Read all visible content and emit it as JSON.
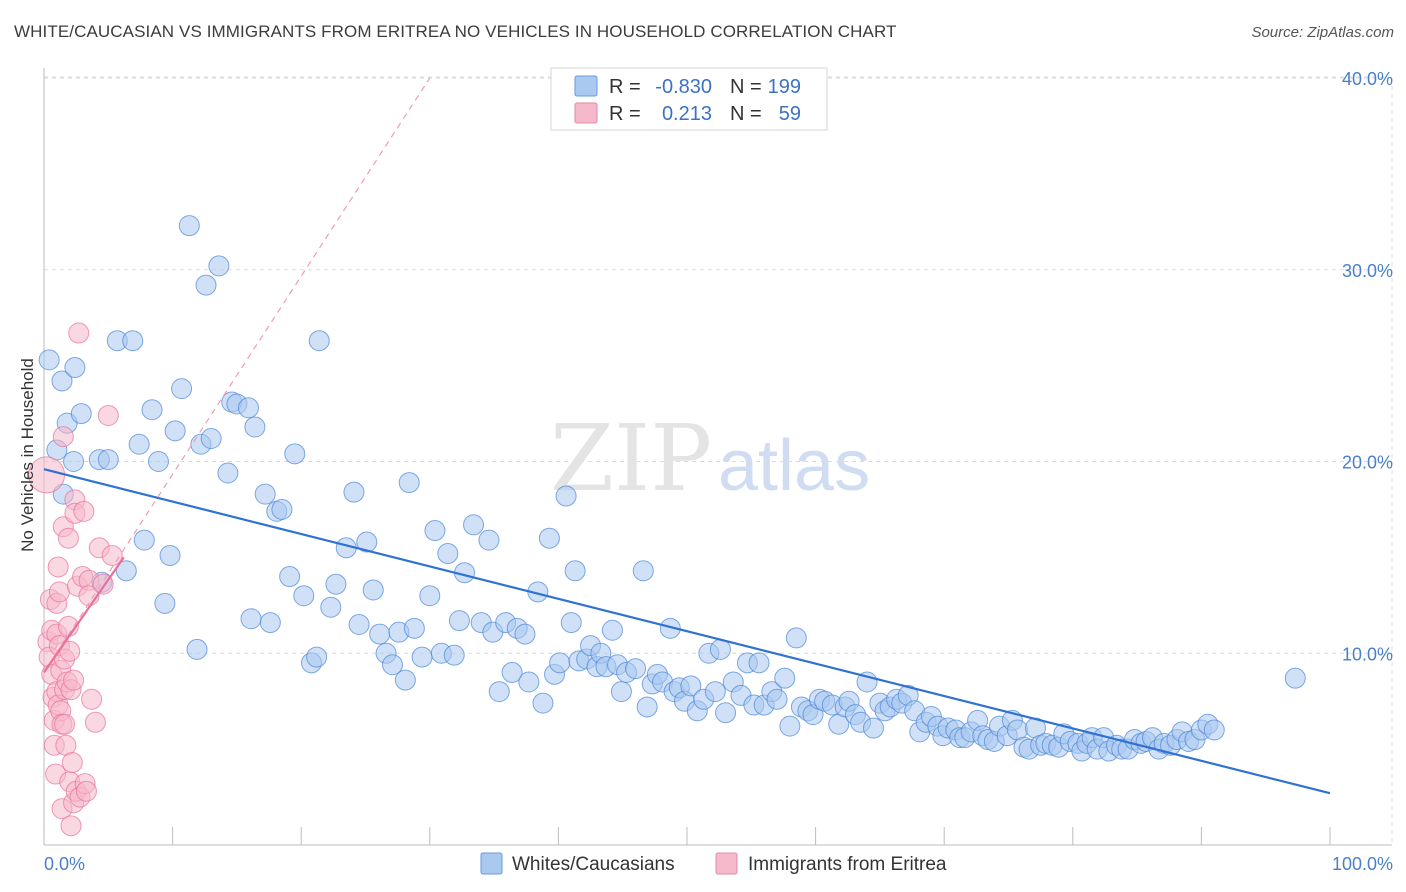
{
  "header": {
    "title": "WHITE/CAUCASIAN VS IMMIGRANTS FROM ERITREA NO VEHICLES IN HOUSEHOLD CORRELATION CHART",
    "source": "Source: ZipAtlas.com"
  },
  "watermark": {
    "zip": "ZIP",
    "atlas": "atlas"
  },
  "stats_legend": {
    "rows": [
      {
        "r_label": "R =",
        "r_value": "-0.830",
        "n_label": "N =",
        "n_value": "199",
        "color": "#a9c9f0"
      },
      {
        "r_label": "R =",
        "r_value": "0.213",
        "n_label": "N =",
        "n_value": "59",
        "color": "#f6b8cb"
      }
    ]
  },
  "bottom_legend": {
    "items": [
      {
        "label": "Whites/Caucasians",
        "color": "#a9c9f0"
      },
      {
        "label": "Immigrants from Eritrea",
        "color": "#f6b8cb"
      }
    ]
  },
  "chart_data": {
    "type": "scatter",
    "title": "WHITE/CAUCASIAN VS IMMIGRANTS FROM ERITREA NO VEHICLES IN HOUSEHOLD CORRELATION CHART",
    "xlabel": "",
    "ylabel": "No Vehicles in Household",
    "xlim": [
      0,
      100
    ],
    "ylim": [
      0,
      40
    ],
    "x_tick_labels": [
      "0.0%",
      "100.0%"
    ],
    "y_ticks": [
      10,
      20,
      30,
      40
    ],
    "y_tick_labels": [
      "10.0%",
      "20.0%",
      "30.0%",
      "40.0%"
    ],
    "grid": true,
    "legend": "top-center",
    "series": [
      {
        "name": "Whites/Caucasians",
        "color": "#4a86d8",
        "fill": "#a9c9f0",
        "trend": {
          "x": [
            0,
            100
          ],
          "y": [
            19.6,
            2.7
          ],
          "style": "solid"
        },
        "points": [
          [
            0.4,
            25.3
          ],
          [
            1.0,
            20.6
          ],
          [
            1.4,
            24.2
          ],
          [
            1.5,
            18.3
          ],
          [
            1.8,
            22.0
          ],
          [
            2.3,
            20.0
          ],
          [
            2.4,
            24.9
          ],
          [
            2.9,
            22.5
          ],
          [
            4.3,
            20.1
          ],
          [
            4.5,
            13.7
          ],
          [
            5.0,
            20.1
          ],
          [
            5.7,
            26.3
          ],
          [
            6.4,
            14.3
          ],
          [
            6.9,
            26.3
          ],
          [
            7.4,
            20.9
          ],
          [
            7.8,
            15.9
          ],
          [
            8.4,
            22.7
          ],
          [
            8.9,
            20.0
          ],
          [
            9.4,
            12.6
          ],
          [
            9.8,
            15.1
          ],
          [
            10.2,
            21.6
          ],
          [
            10.7,
            23.8
          ],
          [
            11.3,
            32.3
          ],
          [
            11.9,
            10.2
          ],
          [
            12.2,
            20.9
          ],
          [
            12.6,
            29.2
          ],
          [
            13.0,
            21.2
          ],
          [
            13.6,
            30.2
          ],
          [
            14.3,
            19.4
          ],
          [
            14.6,
            23.1
          ],
          [
            15.0,
            23.0
          ],
          [
            15.9,
            22.8
          ],
          [
            16.1,
            11.8
          ],
          [
            16.4,
            21.8
          ],
          [
            17.2,
            18.3
          ],
          [
            17.6,
            11.6
          ],
          [
            18.1,
            17.4
          ],
          [
            18.5,
            17.5
          ],
          [
            19.1,
            14.0
          ],
          [
            19.5,
            20.4
          ],
          [
            20.2,
            13.0
          ],
          [
            20.8,
            9.5
          ],
          [
            21.2,
            9.8
          ],
          [
            21.4,
            26.3
          ],
          [
            22.3,
            12.4
          ],
          [
            22.7,
            13.6
          ],
          [
            23.5,
            15.5
          ],
          [
            24.1,
            18.4
          ],
          [
            24.5,
            11.5
          ],
          [
            25.1,
            15.8
          ],
          [
            25.6,
            13.3
          ],
          [
            26.1,
            11.0
          ],
          [
            26.6,
            10.0
          ],
          [
            27.1,
            9.4
          ],
          [
            27.6,
            11.1
          ],
          [
            28.1,
            8.6
          ],
          [
            28.4,
            18.9
          ],
          [
            28.8,
            11.3
          ],
          [
            29.4,
            9.8
          ],
          [
            30.0,
            13.0
          ],
          [
            30.4,
            16.4
          ],
          [
            30.9,
            10.0
          ],
          [
            31.4,
            15.2
          ],
          [
            31.9,
            9.9
          ],
          [
            32.3,
            11.7
          ],
          [
            32.7,
            14.2
          ],
          [
            33.4,
            16.7
          ],
          [
            34.0,
            11.6
          ],
          [
            34.6,
            15.9
          ],
          [
            34.9,
            11.1
          ],
          [
            35.4,
            8.0
          ],
          [
            35.9,
            11.6
          ],
          [
            36.4,
            9.0
          ],
          [
            36.8,
            11.3
          ],
          [
            37.4,
            11.0
          ],
          [
            37.7,
            8.5
          ],
          [
            38.4,
            13.2
          ],
          [
            38.8,
            7.4
          ],
          [
            39.3,
            16.0
          ],
          [
            39.7,
            8.9
          ],
          [
            40.1,
            9.5
          ],
          [
            40.6,
            18.2
          ],
          [
            41.0,
            11.6
          ],
          [
            41.3,
            14.3
          ],
          [
            41.6,
            9.6
          ],
          [
            42.2,
            9.7
          ],
          [
            42.5,
            10.4
          ],
          [
            43.0,
            9.3
          ],
          [
            43.3,
            10.0
          ],
          [
            43.7,
            9.3
          ],
          [
            44.2,
            11.2
          ],
          [
            44.6,
            9.4
          ],
          [
            44.9,
            8.0
          ],
          [
            45.3,
            9.0
          ],
          [
            46.0,
            9.2
          ],
          [
            46.6,
            14.3
          ],
          [
            46.9,
            7.2
          ],
          [
            47.3,
            8.4
          ],
          [
            47.7,
            8.9
          ],
          [
            48.1,
            8.5
          ],
          [
            48.7,
            11.3
          ],
          [
            49.0,
            8.0
          ],
          [
            49.4,
            8.2
          ],
          [
            49.8,
            7.5
          ],
          [
            50.3,
            8.3
          ],
          [
            50.8,
            7.0
          ],
          [
            51.3,
            7.6
          ],
          [
            51.7,
            10.0
          ],
          [
            52.2,
            8.0
          ],
          [
            52.6,
            10.2
          ],
          [
            53.0,
            6.9
          ],
          [
            53.6,
            8.5
          ],
          [
            54.2,
            7.8
          ],
          [
            54.7,
            9.5
          ],
          [
            55.2,
            7.3
          ],
          [
            55.6,
            9.5
          ],
          [
            56.0,
            7.3
          ],
          [
            56.6,
            8.0
          ],
          [
            57.0,
            7.6
          ],
          [
            57.6,
            8.7
          ],
          [
            58.0,
            6.2
          ],
          [
            58.5,
            10.8
          ],
          [
            58.9,
            7.2
          ],
          [
            59.4,
            7.0
          ],
          [
            59.8,
            6.8
          ],
          [
            60.3,
            7.6
          ],
          [
            60.7,
            7.5
          ],
          [
            61.3,
            7.3
          ],
          [
            61.8,
            6.3
          ],
          [
            62.3,
            7.2
          ],
          [
            62.6,
            7.5
          ],
          [
            63.1,
            6.8
          ],
          [
            63.5,
            6.4
          ],
          [
            64.0,
            8.5
          ],
          [
            64.5,
            6.1
          ],
          [
            65.0,
            7.4
          ],
          [
            65.4,
            7.0
          ],
          [
            65.8,
            7.2
          ],
          [
            66.3,
            7.6
          ],
          [
            66.7,
            7.4
          ],
          [
            67.2,
            7.8
          ],
          [
            67.7,
            7.0
          ],
          [
            68.1,
            5.9
          ],
          [
            68.6,
            6.4
          ],
          [
            69.0,
            6.7
          ],
          [
            69.5,
            6.2
          ],
          [
            69.9,
            5.7
          ],
          [
            70.3,
            6.1
          ],
          [
            70.9,
            6.0
          ],
          [
            71.2,
            5.6
          ],
          [
            71.6,
            5.6
          ],
          [
            72.1,
            5.9
          ],
          [
            72.6,
            6.5
          ],
          [
            73.0,
            5.7
          ],
          [
            73.4,
            5.5
          ],
          [
            73.9,
            5.4
          ],
          [
            74.3,
            6.2
          ],
          [
            74.9,
            5.7
          ],
          [
            75.3,
            6.5
          ],
          [
            75.7,
            6.0
          ],
          [
            76.2,
            5.1
          ],
          [
            76.6,
            5.0
          ],
          [
            77.1,
            6.1
          ],
          [
            77.5,
            5.2
          ],
          [
            77.9,
            5.3
          ],
          [
            78.4,
            5.2
          ],
          [
            78.9,
            5.1
          ],
          [
            79.3,
            5.8
          ],
          [
            79.8,
            5.4
          ],
          [
            80.4,
            5.3
          ],
          [
            80.7,
            4.9
          ],
          [
            81.1,
            5.3
          ],
          [
            81.5,
            5.6
          ],
          [
            81.9,
            5.0
          ],
          [
            82.4,
            5.6
          ],
          [
            82.8,
            4.9
          ],
          [
            83.4,
            5.2
          ],
          [
            83.8,
            5.0
          ],
          [
            84.3,
            5.0
          ],
          [
            84.8,
            5.5
          ],
          [
            85.3,
            5.3
          ],
          [
            85.7,
            5.4
          ],
          [
            86.2,
            5.6
          ],
          [
            86.7,
            5.0
          ],
          [
            87.1,
            5.3
          ],
          [
            87.6,
            5.2
          ],
          [
            88.1,
            5.5
          ],
          [
            88.5,
            5.9
          ],
          [
            89.0,
            5.4
          ],
          [
            89.5,
            5.5
          ],
          [
            90.0,
            6.0
          ],
          [
            90.5,
            6.3
          ],
          [
            91.0,
            6.0
          ],
          [
            97.3,
            8.7
          ]
        ]
      },
      {
        "name": "Immigrants from Eritrea",
        "color": "#e8709a",
        "fill": "#f6b8cb",
        "trend": {
          "x": [
            0,
            6.2
          ],
          "y": [
            9.0,
            15.0
          ],
          "style": "solid"
        },
        "trend_extended": {
          "x": [
            0,
            30.0
          ],
          "y": [
            9.0,
            40.0
          ],
          "style": "dashed"
        },
        "points": [
          [
            0.2,
            19.3
          ],
          [
            0.3,
            10.6
          ],
          [
            0.4,
            9.8
          ],
          [
            0.5,
            12.8
          ],
          [
            0.6,
            11.2
          ],
          [
            0.6,
            8.9
          ],
          [
            0.7,
            7.7
          ],
          [
            0.8,
            6.5
          ],
          [
            0.8,
            5.2
          ],
          [
            0.9,
            3.7
          ],
          [
            1.0,
            12.6
          ],
          [
            1.0,
            11.0
          ],
          [
            1.0,
            8.0
          ],
          [
            1.1,
            7.3
          ],
          [
            1.1,
            14.5
          ],
          [
            1.2,
            13.2
          ],
          [
            1.2,
            10.4
          ],
          [
            1.3,
            9.1
          ],
          [
            1.3,
            7.0
          ],
          [
            1.4,
            6.3
          ],
          [
            1.4,
            1.9
          ],
          [
            1.5,
            21.3
          ],
          [
            1.5,
            16.6
          ],
          [
            1.6,
            9.7
          ],
          [
            1.6,
            8.1
          ],
          [
            1.6,
            6.3
          ],
          [
            1.7,
            5.2
          ],
          [
            1.8,
            8.5
          ],
          [
            1.9,
            16.0
          ],
          [
            1.9,
            11.4
          ],
          [
            2.0,
            10.1
          ],
          [
            2.0,
            3.3
          ],
          [
            2.1,
            8.1
          ],
          [
            2.1,
            1.0
          ],
          [
            2.2,
            4.3
          ],
          [
            2.3,
            2.2
          ],
          [
            2.3,
            8.6
          ],
          [
            2.4,
            18.0
          ],
          [
            2.4,
            17.3
          ],
          [
            2.5,
            2.8
          ],
          [
            2.6,
            13.5
          ],
          [
            2.7,
            26.7
          ],
          [
            2.8,
            2.5
          ],
          [
            3.0,
            14.0
          ],
          [
            3.1,
            17.4
          ],
          [
            3.2,
            3.2
          ],
          [
            3.3,
            2.8
          ],
          [
            3.5,
            13.8
          ],
          [
            3.5,
            13.0
          ],
          [
            3.7,
            7.6
          ],
          [
            4.0,
            6.4
          ],
          [
            4.3,
            15.5
          ],
          [
            4.6,
            13.6
          ],
          [
            5.0,
            22.4
          ],
          [
            5.3,
            15.1
          ]
        ]
      }
    ]
  }
}
